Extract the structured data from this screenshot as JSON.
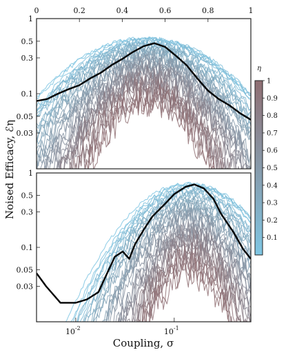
{
  "chart_data": [
    {
      "type": "line",
      "panel": "top",
      "x_axis": {
        "position": "top",
        "scale": "linear",
        "range": [
          0,
          1
        ],
        "ticks": [
          0,
          0.2,
          0.4,
          0.6,
          0.8,
          1
        ],
        "tick_labels": [
          "0",
          "0.2",
          "0.4",
          "0.6",
          "0.8",
          "1"
        ]
      },
      "y_axis": {
        "scale": "log",
        "range": [
          0.01,
          1
        ],
        "ticks": [
          1,
          0.5,
          0.3,
          0.1,
          0.05,
          0.03
        ],
        "tick_labels": [
          "1",
          "0.5",
          "0.3",
          "0.1",
          "0.05",
          "0.03"
        ]
      },
      "curve_family": {
        "count": 40,
        "color_by": "eta",
        "eta_range": [
          0,
          1
        ],
        "peak_x_range": [
          0.5,
          0.54
        ],
        "peak_y_range": [
          0.08,
          0.55
        ]
      },
      "highlight": {
        "color": "#000000",
        "x": [
          0,
          0.05,
          0.1,
          0.15,
          0.2,
          0.25,
          0.3,
          0.35,
          0.4,
          0.45,
          0.5,
          0.55,
          0.6,
          0.65,
          0.7,
          0.75,
          0.8,
          0.85,
          0.9,
          0.95,
          1
        ],
        "y": [
          0.08,
          0.085,
          0.1,
          0.115,
          0.13,
          0.16,
          0.19,
          0.24,
          0.29,
          0.36,
          0.43,
          0.47,
          0.42,
          0.32,
          0.24,
          0.16,
          0.11,
          0.085,
          0.07,
          0.055,
          0.045
        ]
      }
    },
    {
      "type": "line",
      "panel": "bottom",
      "x_axis": {
        "position": "bottom",
        "scale": "log",
        "range": [
          0.004,
          0.6
        ],
        "ticks": [
          0.01,
          0.1
        ],
        "tick_labels": [
          "10^-2",
          "10^-1"
        ],
        "label": "Coupling, σ"
      },
      "y_axis": {
        "scale": "log",
        "range": [
          0.01,
          1
        ],
        "ticks": [
          1,
          0.5,
          0.3,
          0.1,
          0.05,
          0.03
        ],
        "tick_labels": [
          "1",
          "0.5",
          "0.3",
          "0.1",
          "0.05",
          "0.03"
        ]
      },
      "curve_family": {
        "count": 40,
        "color_by": "eta",
        "eta_range": [
          0,
          1
        ],
        "peak_x_range": [
          0.13,
          0.16
        ],
        "peak_y_range": [
          0.05,
          0.72
        ]
      },
      "highlight": {
        "color": "#000000",
        "x": [
          0.004,
          0.005,
          0.007,
          0.01,
          0.013,
          0.017,
          0.02,
          0.025,
          0.03,
          0.035,
          0.04,
          0.05,
          0.06,
          0.08,
          0.1,
          0.13,
          0.16,
          0.2,
          0.25,
          0.3,
          0.4,
          0.5,
          0.6
        ],
        "y": [
          0.045,
          0.03,
          0.018,
          0.018,
          0.02,
          0.025,
          0.04,
          0.075,
          0.088,
          0.07,
          0.11,
          0.18,
          0.26,
          0.38,
          0.52,
          0.65,
          0.7,
          0.62,
          0.45,
          0.28,
          0.16,
          0.095,
          0.07
        ]
      }
    }
  ],
  "shared": {
    "ylabel": "Noised Efficacy, ℰη",
    "colorbar": {
      "title": "η",
      "range": [
        0,
        1
      ],
      "ticks": [
        "0.1",
        "0.2",
        "0.3",
        "0.4",
        "0.5",
        "0.6",
        "0.7",
        "0.8",
        "0.9",
        "1"
      ],
      "color_low": "#7fc6e3",
      "color_high": "#8f6e72"
    }
  }
}
